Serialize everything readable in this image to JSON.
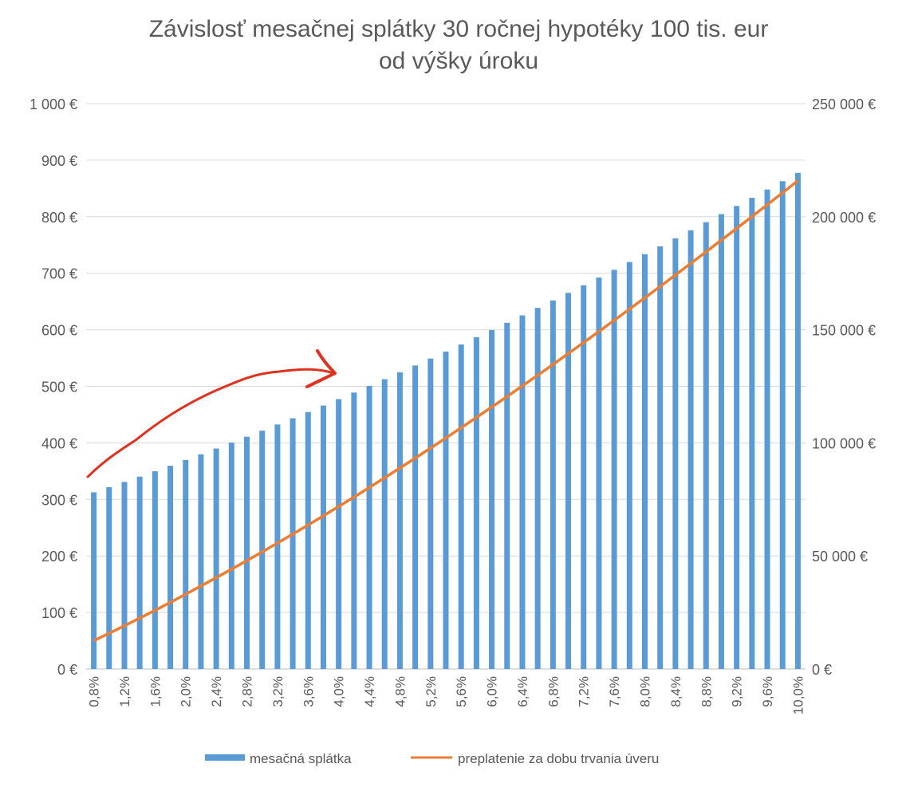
{
  "chart_data": {
    "type": "bar+line",
    "title": [
      "Závislosť  mesačnej splátky 30 ročnej hypotéky 100 tis. eur",
      "od výšky úroku"
    ],
    "x": [
      "0,8%",
      "1,0%",
      "1,2%",
      "1,4%",
      "1,6%",
      "1,8%",
      "2,0%",
      "2,2%",
      "2,4%",
      "2,6%",
      "2,8%",
      "3,0%",
      "3,2%",
      "3,4%",
      "3,6%",
      "3,8%",
      "4,0%",
      "4,2%",
      "4,4%",
      "4,6%",
      "4,8%",
      "5,0%",
      "5,2%",
      "5,4%",
      "5,6%",
      "5,8%",
      "6,0%",
      "6,2%",
      "6,4%",
      "6,6%",
      "6,8%",
      "7,0%",
      "7,2%",
      "7,4%",
      "7,6%",
      "7,8%",
      "8,0%",
      "8,2%",
      "8,4%",
      "8,6%",
      "8,8%",
      "9,0%",
      "9,2%",
      "9,4%",
      "9,6%",
      "9,8%",
      "10,0%"
    ],
    "series": [
      {
        "name": "mesačná splátka",
        "type": "bar",
        "axis": "left",
        "color": "#5B9BD5",
        "values": [
          312.55,
          321.64,
          330.9,
          340.3,
          349.8,
          359.6,
          369.62,
          379.8,
          390.0,
          400.4,
          410.9,
          421.6,
          432.5,
          443.5,
          454.6,
          466.0,
          477.42,
          489.0,
          500.7,
          512.6,
          524.7,
          536.82,
          549.1,
          561.5,
          574.1,
          586.8,
          599.55,
          612.4,
          625.5,
          638.7,
          651.9,
          665.3,
          678.8,
          692.4,
          706.1,
          719.9,
          733.76,
          747.7,
          761.8,
          776.0,
          790.3,
          804.62,
          819.0,
          833.5,
          848.1,
          862.8,
          877.57
        ]
      },
      {
        "name": "preplatenie za dobu trvania úveru",
        "type": "line",
        "axis": "right",
        "color": "#ED7D31",
        "values": [
          12518,
          15790,
          19124,
          22508,
          25928,
          29456,
          33063,
          36728,
          40400,
          44144,
          47924,
          51776,
          55700,
          59660,
          63656,
          67760,
          71871,
          76040,
          80252,
          84536,
          88892,
          93255,
          97676,
          102140,
          106676,
          111248,
          115838,
          120464,
          125180,
          129932,
          134684,
          139508,
          144368,
          149264,
          154196,
          159164,
          164154,
          169172,
          174248,
          179360,
          184508,
          189663,
          194840,
          200060,
          205316,
          210608,
          215925
        ]
      }
    ],
    "y_left": {
      "range": [
        0,
        1000
      ],
      "ticks": [
        "0 €",
        "100 €",
        "200 €",
        "300 €",
        "400 €",
        "500 €",
        "600 €",
        "700 €",
        "800 €",
        "900 €",
        "1 000 €"
      ]
    },
    "y_right": {
      "range": [
        0,
        250000
      ],
      "ticks": [
        "0 €",
        "50 000 €",
        "100 000 €",
        "150 000 €",
        "200 000 €",
        "250 000 €"
      ]
    },
    "grid": true,
    "legend": {
      "placement": "bottom",
      "entries": [
        "mesačná splátka",
        "preplatenie za dobu trvania úveru"
      ]
    }
  }
}
